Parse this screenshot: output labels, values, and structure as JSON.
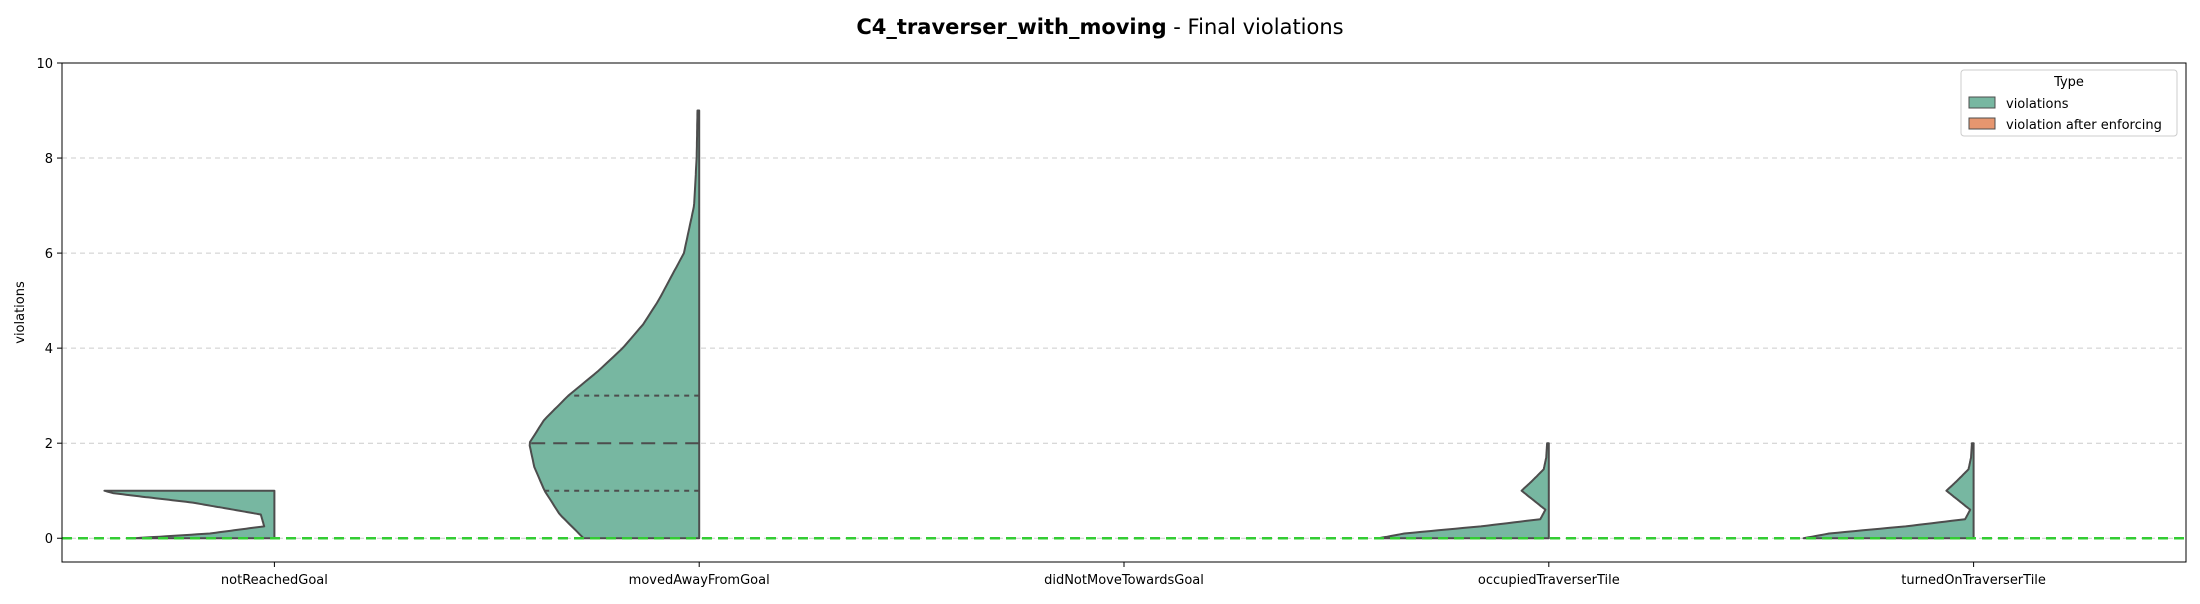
{
  "title_bold": "C4_traverser_with_moving",
  "title_rest": " - Final violations",
  "chart_data": {
    "type": "violin",
    "split": true,
    "categories": [
      "notReachedGoal",
      "movedAwayFromGoal",
      "didNotMoveTowardsGoal",
      "occupiedTraverserTile",
      "turnedOnTraverserTile"
    ],
    "ylabel": "violations",
    "xlabel": "",
    "ylim": [
      -0.5,
      10
    ],
    "yticks": [
      0,
      2,
      4,
      6,
      8,
      10
    ],
    "grid": true,
    "legend": {
      "title": "Type",
      "placement": "top-right",
      "entries": [
        "violations",
        "violation after enforcing"
      ]
    },
    "reference_line": {
      "y": 0,
      "style": "dashed",
      "color": "#33cc33"
    },
    "colors": {
      "violations": "#77b7a1",
      "violation after enforcing": "#e6966f",
      "outline": "#4d4d4d"
    },
    "series": [
      {
        "name": "violations",
        "violins": [
          {
            "category": "notReachedGoal",
            "y_range": [
              0,
              1
            ],
            "profile": [
              [
                0,
                0.82
              ],
              [
                0.1,
                0.38
              ],
              [
                0.25,
                0.06
              ],
              [
                0.5,
                0.08
              ],
              [
                0.75,
                0.48
              ],
              [
                0.85,
                0.72
              ],
              [
                0.95,
                0.95
              ],
              [
                1,
                1.0
              ]
            ],
            "quartiles": []
          },
          {
            "category": "movedAwayFromGoal",
            "y_range": [
              0,
              9
            ],
            "profile": [
              [
                0,
                0.68
              ],
              [
                0.5,
                0.82
              ],
              [
                1,
                0.91
              ],
              [
                1.5,
                0.97
              ],
              [
                2,
                1.0
              ],
              [
                2.5,
                0.91
              ],
              [
                3,
                0.77
              ],
              [
                3.5,
                0.6
              ],
              [
                4,
                0.45
              ],
              [
                4.5,
                0.33
              ],
              [
                5,
                0.24
              ],
              [
                6,
                0.09
              ],
              [
                7,
                0.03
              ],
              [
                8,
                0.015
              ],
              [
                9,
                0.01
              ]
            ],
            "quartiles": [
              1,
              2,
              3
            ]
          },
          {
            "category": "occupiedTraverserTile",
            "y_range": [
              0,
              2
            ],
            "profile": [
              [
                0,
                1.0
              ],
              [
                0.1,
                0.85
              ],
              [
                0.25,
                0.4
              ],
              [
                0.4,
                0.05
              ],
              [
                0.6,
                0.02
              ],
              [
                0.8,
                0.09
              ],
              [
                1.0,
                0.16
              ],
              [
                1.2,
                0.1
              ],
              [
                1.45,
                0.03
              ],
              [
                1.7,
                0.015
              ],
              [
                2,
                0.01
              ]
            ],
            "quartiles": []
          },
          {
            "category": "turnedOnTraverserTile",
            "y_range": [
              0,
              2
            ],
            "profile": [
              [
                0,
                1.0
              ],
              [
                0.1,
                0.85
              ],
              [
                0.25,
                0.4
              ],
              [
                0.4,
                0.05
              ],
              [
                0.6,
                0.02
              ],
              [
                0.8,
                0.09
              ],
              [
                1.0,
                0.16
              ],
              [
                1.2,
                0.1
              ],
              [
                1.45,
                0.03
              ],
              [
                1.7,
                0.015
              ],
              [
                2,
                0.01
              ]
            ],
            "quartiles": []
          }
        ]
      },
      {
        "name": "violation after enforcing",
        "violins": []
      }
    ]
  }
}
